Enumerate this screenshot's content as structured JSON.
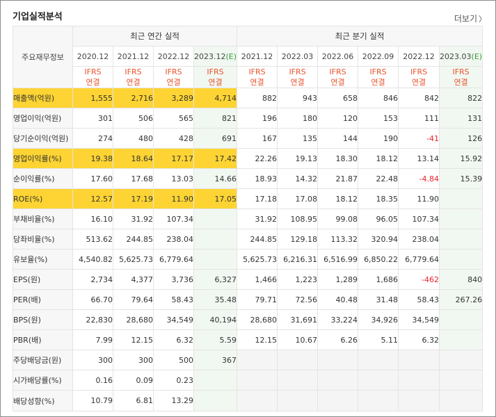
{
  "title": "기업실적분석",
  "more_link": "더보기",
  "header_label": "주요재무정보",
  "annual_group": "최근 연간 실적",
  "quarter_group": "최근 분기 실적",
  "annual_periods": [
    "2020.12",
    "2021.12",
    "2022.12",
    "2023.12"
  ],
  "annual_est_suffix": "(E)",
  "quarter_periods": [
    "2021.12",
    "2022.03",
    "2022.06",
    "2022.09",
    "2022.12",
    "2023.03"
  ],
  "quarter_est_suffix": "(E)",
  "ifrs_line1": "IFRS",
  "ifrs_line2": "연결",
  "colors": {
    "highlight": "#fdd433",
    "negative": "#e8222c",
    "ifrs": "#e8542e",
    "estimate": "#3a9a3a"
  },
  "rows": [
    {
      "label": "매출액(억원)",
      "highlight": true,
      "annual": [
        "1,555",
        "2,716",
        "3,289",
        "4,714"
      ],
      "quarter": [
        "882",
        "943",
        "658",
        "846",
        "842",
        "822"
      ]
    },
    {
      "label": "영업이익(억원)",
      "highlight": false,
      "annual": [
        "301",
        "506",
        "565",
        "821"
      ],
      "quarter": [
        "196",
        "180",
        "120",
        "153",
        "111",
        "131"
      ]
    },
    {
      "label": "당기순이익(억원)",
      "highlight": false,
      "annual": [
        "274",
        "480",
        "428",
        "691"
      ],
      "quarter": [
        "167",
        "135",
        "144",
        "190",
        "-41",
        "126"
      ]
    },
    {
      "label": "영업이익률(%)",
      "highlight": true,
      "annual": [
        "19.38",
        "18.64",
        "17.17",
        "17.42"
      ],
      "quarter": [
        "22.26",
        "19.13",
        "18.30",
        "18.12",
        "13.14",
        "15.92"
      ]
    },
    {
      "label": "순이익률(%)",
      "highlight": false,
      "annual": [
        "17.60",
        "17.68",
        "13.03",
        "14.66"
      ],
      "quarter": [
        "18.93",
        "14.32",
        "21.87",
        "22.48",
        "-4.84",
        "15.39"
      ]
    },
    {
      "label": "ROE(%)",
      "highlight": true,
      "annual": [
        "12.57",
        "17.19",
        "11.90",
        "17.05"
      ],
      "quarter": [
        "17.18",
        "17.08",
        "18.12",
        "18.35",
        "11.90",
        ""
      ]
    },
    {
      "label": "부채비율(%)",
      "highlight": false,
      "annual": [
        "16.10",
        "31.92",
        "107.34",
        ""
      ],
      "quarter": [
        "31.92",
        "108.95",
        "99.08",
        "96.05",
        "107.34",
        ""
      ]
    },
    {
      "label": "당좌비율(%)",
      "highlight": false,
      "annual": [
        "513.62",
        "244.85",
        "238.04",
        ""
      ],
      "quarter": [
        "244.85",
        "129.18",
        "113.32",
        "320.94",
        "238.04",
        ""
      ]
    },
    {
      "label": "유보율(%)",
      "highlight": false,
      "annual": [
        "4,540.82",
        "5,625.73",
        "6,779.64",
        ""
      ],
      "quarter": [
        "5,625.73",
        "6,216.31",
        "6,516.99",
        "6,850.22",
        "6,779.64",
        ""
      ]
    },
    {
      "label": "EPS(원)",
      "highlight": false,
      "annual": [
        "2,734",
        "4,377",
        "3,736",
        "6,327"
      ],
      "quarter": [
        "1,466",
        "1,223",
        "1,289",
        "1,686",
        "-462",
        "840"
      ]
    },
    {
      "label": "PER(배)",
      "highlight": false,
      "annual": [
        "66.70",
        "79.64",
        "58.43",
        "35.48"
      ],
      "quarter": [
        "79.71",
        "72.56",
        "40.48",
        "31.48",
        "58.43",
        "267.26"
      ]
    },
    {
      "label": "BPS(원)",
      "highlight": false,
      "annual": [
        "22,830",
        "28,680",
        "34,549",
        "40,194"
      ],
      "quarter": [
        "28,680",
        "31,691",
        "33,224",
        "34,926",
        "34,549",
        ""
      ]
    },
    {
      "label": "PBR(배)",
      "highlight": false,
      "annual": [
        "7.99",
        "12.15",
        "6.32",
        "5.59"
      ],
      "quarter": [
        "12.15",
        "10.67",
        "6.26",
        "5.11",
        "6.32",
        ""
      ]
    },
    {
      "label": "주당배당금(원)",
      "highlight": false,
      "annual": [
        "300",
        "300",
        "500",
        "367"
      ],
      "quarter": null
    },
    {
      "label": "시가배당률(%)",
      "highlight": false,
      "annual": [
        "0.16",
        "0.09",
        "0.23",
        ""
      ],
      "quarter": null
    },
    {
      "label": "배당성향(%)",
      "highlight": false,
      "annual": [
        "10.79",
        "6.81",
        "13.29",
        ""
      ],
      "quarter": null
    }
  ]
}
